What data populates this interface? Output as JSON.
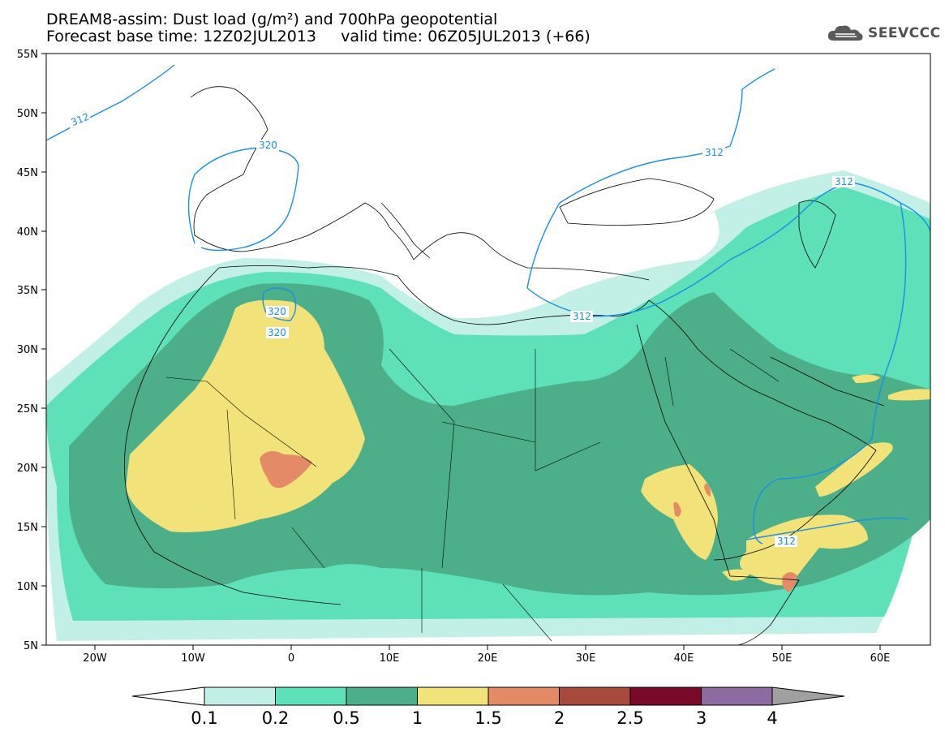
{
  "title": {
    "line1": "DREAM8-assim: Dust load (g/m²) and 700hPa geopotential",
    "line2": "Forecast base time: 12Z02JUL2013     valid time: 06Z05JUL2013 (+66)"
  },
  "logo": {
    "text": "SEEVCCC",
    "icon": "cloud-icon"
  },
  "map": {
    "lat_ticks": [
      "55N",
      "50N",
      "45N",
      "40N",
      "35N",
      "30N",
      "25N",
      "20N",
      "15N",
      "10N",
      "5N"
    ],
    "lon_ticks": [
      "20W",
      "10W",
      "0",
      "10E",
      "20E",
      "30E",
      "40E",
      "50E",
      "60E"
    ],
    "contours": [
      {
        "label": "312"
      },
      {
        "label": "320"
      },
      {
        "label": "320"
      },
      {
        "label": "320"
      },
      {
        "label": "312"
      },
      {
        "label": "312"
      },
      {
        "label": "312"
      },
      {
        "label": "312"
      }
    ]
  },
  "colorbar": {
    "labels": [
      "0.1",
      "0.2",
      "0.5",
      "1",
      "1.5",
      "2",
      "2.5",
      "3",
      "4"
    ],
    "colors": [
      "#c3f0e6",
      "#5ee0b9",
      "#4caf8a",
      "#f2e27a",
      "#e58a66",
      "#a7493c",
      "#7a0a2a",
      "#8d6aa0",
      "#a0a0a0"
    ],
    "left_arrow_color": "#ffffff",
    "right_arrow_color": "#a0a0a0"
  },
  "colors": {
    "contour": "#1a8fe3",
    "land_border": "#000000"
  }
}
